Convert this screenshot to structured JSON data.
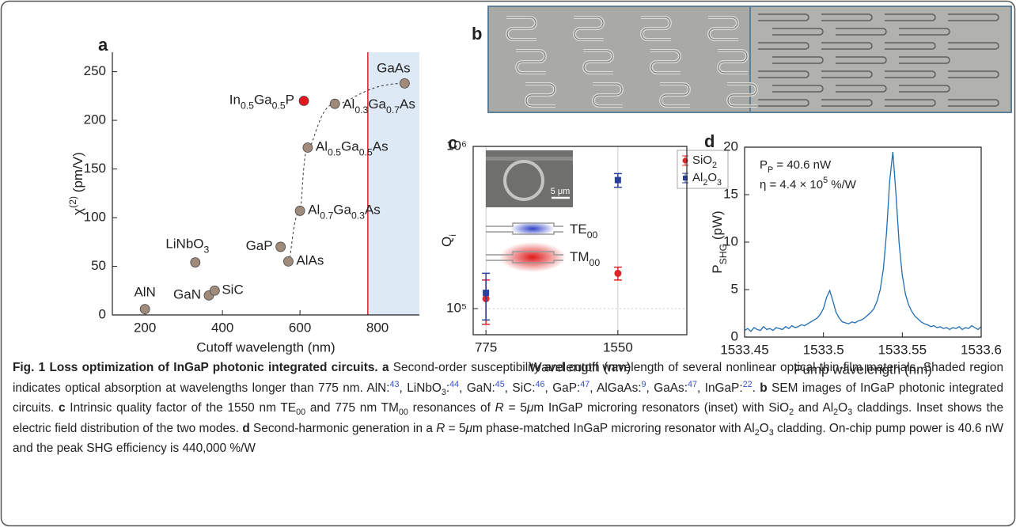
{
  "panel_labels": [
    "a",
    "b",
    "c",
    "d"
  ],
  "chart_data": [
    {
      "type": "scatter",
      "xlabel": "Cutoff wavelength (nm)",
      "ylabel": "χ(2) (pm/V)",
      "xlim": [
        116,
        908
      ],
      "ylim": [
        0,
        270
      ],
      "xticks": [
        200,
        400,
        600,
        800
      ],
      "yticks": [
        0,
        50,
        100,
        150,
        200,
        250
      ],
      "reference_line": {
        "x": 775,
        "color": "#d7262b"
      },
      "shade_color": "#dde9f5",
      "series": [
        {
          "color": "#a08a7a",
          "x": [
            200,
            330,
            365,
            380,
            550,
            570,
            600,
            620,
            690,
            870
          ],
          "values": [
            6,
            54,
            20,
            25,
            70,
            55,
            107,
            172,
            217,
            238
          ],
          "labels": [
            "AlN",
            "LiNbO3",
            "GaN",
            "SiC",
            "GaP",
            "AlAs",
            "Al0.7Ga0.3As",
            "Al0.5Ga0.5As",
            "Al0.3Ga0.7As",
            "GaAs"
          ]
        },
        {
          "color": "#e3171f",
          "x": [
            610
          ],
          "values": [
            220
          ],
          "labels": [
            "In0.5Ga0.5P"
          ]
        }
      ]
    },
    {
      "type": "errorbar",
      "xlabel": "Wavelength (nm)",
      "ylabel": "Qi",
      "log_y": true,
      "grid": true,
      "legend": "upper right",
      "xlim": [
        700,
        1955
      ],
      "ylim": [
        69000,
        1000000
      ],
      "xticks": [
        775,
        1550
      ],
      "yticks": [
        {
          "value": 100000,
          "label": "10⁵"
        },
        {
          "value": 1000000,
          "label": "10⁶"
        }
      ],
      "annotations": [
        "5 μm",
        "TE00",
        "TM00"
      ],
      "series": [
        {
          "name": "SiO2",
          "color": "#e0262a",
          "marker": "circle",
          "x": [
            775,
            1550
          ],
          "values": [
            115000,
            165000
          ],
          "errors": [
            35000,
            15000
          ]
        },
        {
          "name": "Al2O3",
          "color": "#2b3f9c",
          "marker": "square",
          "x": [
            775,
            1550
          ],
          "values": [
            125000,
            620000
          ],
          "errors": [
            40000,
            60000
          ]
        }
      ]
    },
    {
      "type": "line",
      "xlabel": "Pump wavelength (nm)",
      "ylabel": "PSHG (pW)",
      "xlim": [
        1533.45,
        1533.6
      ],
      "ylim": [
        0,
        20
      ],
      "xticks": [
        1533.45,
        1533.5,
        1533.55,
        1533.6
      ],
      "yticks": [
        0,
        5,
        10,
        15,
        20
      ],
      "annotations": [
        "PP = 40.6 nW",
        "η = 4.4 × 105 %/W"
      ],
      "series": [
        {
          "color": "#1f6db5",
          "x": [
            1533.45,
            1533.452,
            1533.454,
            1533.456,
            1533.458,
            1533.46,
            1533.462,
            1533.464,
            1533.466,
            1533.468,
            1533.47,
            1533.472,
            1533.474,
            1533.476,
            1533.478,
            1533.48,
            1533.482,
            1533.484,
            1533.486,
            1533.488,
            1533.49,
            1533.492,
            1533.494,
            1533.496,
            1533.498,
            1533.5,
            1533.502,
            1533.504,
            1533.506,
            1533.508,
            1533.51,
            1533.512,
            1533.514,
            1533.516,
            1533.518,
            1533.52,
            1533.522,
            1533.524,
            1533.526,
            1533.528,
            1533.53,
            1533.532,
            1533.534,
            1533.536,
            1533.538,
            1533.54,
            1533.542,
            1533.544,
            1533.546,
            1533.548,
            1533.55,
            1533.552,
            1533.554,
            1533.556,
            1533.558,
            1533.56,
            1533.562,
            1533.564,
            1533.566,
            1533.568,
            1533.57,
            1533.572,
            1533.574,
            1533.576,
            1533.578,
            1533.58,
            1533.582,
            1533.584,
            1533.586,
            1533.588,
            1533.59,
            1533.592,
            1533.594,
            1533.596,
            1533.598,
            1533.6
          ],
          "values": [
            0.7,
            0.9,
            0.6,
            1.0,
            0.8,
            0.7,
            1.1,
            0.8,
            0.9,
            0.7,
            1.0,
            0.9,
            0.8,
            1.1,
            0.9,
            1.2,
            1.0,
            1.1,
            1.3,
            1.2,
            1.4,
            1.6,
            1.8,
            2.0,
            2.4,
            3.0,
            4.2,
            4.9,
            3.8,
            2.6,
            2.0,
            1.6,
            1.5,
            1.4,
            1.6,
            1.5,
            1.7,
            1.8,
            2.0,
            2.3,
            2.6,
            3.0,
            3.8,
            5.0,
            7.2,
            11.0,
            16.5,
            19.5,
            15.0,
            9.8,
            6.5,
            4.5,
            3.4,
            2.7,
            2.2,
            1.9,
            1.6,
            1.4,
            1.3,
            1.1,
            1.2,
            1.0,
            1.1,
            0.9,
            1.0,
            0.8,
            1.0,
            0.9,
            1.1,
            0.8,
            1.0,
            0.9,
            1.2,
            1.0,
            0.8,
            1.1
          ]
        }
      ]
    }
  ],
  "caption": {
    "runs": [
      {
        "b": "Fig. 1 Loss optimization of InGaP photonic integrated circuits. "
      },
      {
        "b": "a"
      },
      {
        "t": " Second-order susceptibility and cutoff wavelength of several nonlinear optical thin-film materials. Shaded region indicates optical absorption at wavelengths longer than 775 nm. AlN:"
      },
      {
        "ref": "43"
      },
      {
        "t": ", LiNbO"
      },
      {
        "sub": "3"
      },
      {
        "t": ":"
      },
      {
        "ref": "44"
      },
      {
        "t": ", GaN:"
      },
      {
        "ref": "45"
      },
      {
        "t": ", SiC:"
      },
      {
        "ref": "46"
      },
      {
        "t": ", GaP:"
      },
      {
        "ref": "47"
      },
      {
        "t": ", AlGaAs:"
      },
      {
        "ref": "9"
      },
      {
        "t": ", GaAs:"
      },
      {
        "ref": "47"
      },
      {
        "t": ", InGaP:"
      },
      {
        "ref": "22"
      },
      {
        "t": ". "
      },
      {
        "b": "b"
      },
      {
        "t": " SEM images of InGaP photonic integrated circuits. "
      },
      {
        "b": "c"
      },
      {
        "t": " Intrinsic quality factor of the 1550 nm TE"
      },
      {
        "sub": "00"
      },
      {
        "t": " and 775 nm TM"
      },
      {
        "sub": "00"
      },
      {
        "t": " resonances of "
      },
      {
        "i": "R"
      },
      {
        "t": " = 5"
      },
      {
        "i": "μ"
      },
      {
        "t": "m InGaP microring resonators (inset) with SiO"
      },
      {
        "sub": "2"
      },
      {
        "t": " and Al"
      },
      {
        "sub": "2"
      },
      {
        "t": "O"
      },
      {
        "sub": "3"
      },
      {
        "t": " claddings. Inset shows the electric field distribution of the two modes. "
      },
      {
        "b": "d"
      },
      {
        "t": " Second-harmonic generation in a "
      },
      {
        "i": "R"
      },
      {
        "t": " = 5"
      },
      {
        "i": "μ"
      },
      {
        "t": "m phase-matched InGaP microring resonator with Al"
      },
      {
        "sub": "2"
      },
      {
        "t": "O"
      },
      {
        "sub": "3"
      },
      {
        "t": " cladding. On-chip pump power is 40.6 nW and the peak SHG efficiency is 440,000 %/W"
      }
    ]
  }
}
